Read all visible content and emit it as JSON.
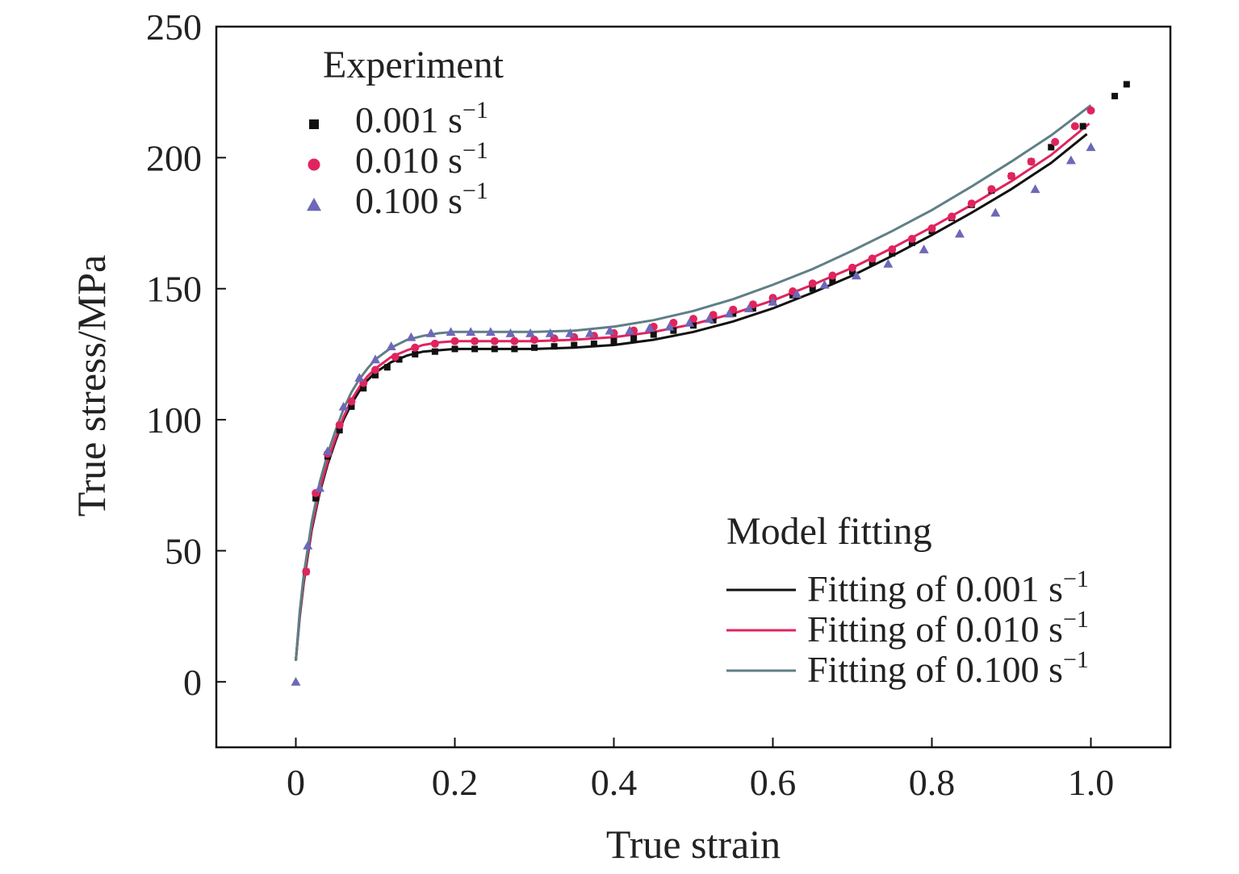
{
  "chart_data": {
    "type": "scatter",
    "title": "",
    "xlabel": "True strain",
    "ylabel": "True stress/MPa",
    "xlim": [
      -0.1,
      1.1
    ],
    "ylim": [
      -25,
      250
    ],
    "x_ticks": [
      {
        "value": 0,
        "label": "0"
      },
      {
        "value": 0.2,
        "label": "0.2"
      },
      {
        "value": 0.4,
        "label": "0.4"
      },
      {
        "value": 0.6,
        "label": "0.6"
      },
      {
        "value": 0.8,
        "label": "0.8"
      },
      {
        "value": 1.0,
        "label": "1.0"
      }
    ],
    "y_ticks": [
      {
        "value": 0,
        "label": "0"
      },
      {
        "value": 50,
        "label": "50"
      },
      {
        "value": 100,
        "label": "100"
      },
      {
        "value": 150,
        "label": "150"
      },
      {
        "value": 200,
        "label": "200"
      },
      {
        "value": 250,
        "label": "250"
      }
    ],
    "grid": false,
    "legend_experiment": {
      "title": "Experiment",
      "placement": "top-left",
      "entries": [
        {
          "label": "0.001 s",
          "sup": "−1",
          "marker": "square",
          "color": "#111111"
        },
        {
          "label": "0.010 s",
          "sup": "−1",
          "marker": "circle",
          "color": "#e0245e"
        },
        {
          "label": "0.100 s",
          "sup": "−1",
          "marker": "triangle",
          "color": "#6d68b8"
        }
      ]
    },
    "legend_model": {
      "title": "Model fitting",
      "placement": "bottom-right",
      "entries": [
        {
          "label": "Fitting of 0.001 s",
          "sup": "−1",
          "color": "#111111"
        },
        {
          "label": "Fitting of 0.010 s",
          "sup": "−1",
          "color": "#e0245e"
        },
        {
          "label": "Fitting of 0.100 s",
          "sup": "−1",
          "color": "#5f7f86"
        }
      ]
    },
    "series": [
      {
        "name": "0.001 s-1 experiment",
        "kind": "scatter",
        "marker": "square",
        "color": "#111111",
        "points": [
          [
            0.013,
            42
          ],
          [
            0.025,
            70
          ],
          [
            0.04,
            86
          ],
          [
            0.055,
            96
          ],
          [
            0.07,
            105
          ],
          [
            0.085,
            112
          ],
          [
            0.1,
            117
          ],
          [
            0.115,
            120
          ],
          [
            0.13,
            123
          ],
          [
            0.15,
            125
          ],
          [
            0.175,
            126
          ],
          [
            0.2,
            127
          ],
          [
            0.225,
            127
          ],
          [
            0.25,
            127
          ],
          [
            0.275,
            127
          ],
          [
            0.3,
            127.5
          ],
          [
            0.325,
            128
          ],
          [
            0.35,
            128.5
          ],
          [
            0.375,
            129
          ],
          [
            0.4,
            130
          ],
          [
            0.425,
            131
          ],
          [
            0.45,
            132.5
          ],
          [
            0.475,
            134
          ],
          [
            0.5,
            136
          ],
          [
            0.525,
            138
          ],
          [
            0.55,
            140.5
          ],
          [
            0.575,
            142.5
          ],
          [
            0.6,
            145
          ],
          [
            0.625,
            147.5
          ],
          [
            0.65,
            150
          ],
          [
            0.675,
            153
          ],
          [
            0.7,
            156.5
          ],
          [
            0.725,
            160
          ],
          [
            0.75,
            163.5
          ],
          [
            0.775,
            167.5
          ],
          [
            0.8,
            172
          ],
          [
            0.825,
            177
          ],
          [
            0.85,
            182
          ],
          [
            0.875,
            187.5
          ],
          [
            0.9,
            193
          ],
          [
            0.925,
            198.5
          ],
          [
            0.95,
            204
          ],
          [
            0.99,
            212
          ],
          [
            1.03,
            223.5
          ],
          [
            1.045,
            228
          ]
        ]
      },
      {
        "name": "0.010 s-1 experiment",
        "kind": "scatter",
        "marker": "circle",
        "color": "#e0245e",
        "points": [
          [
            0.013,
            42
          ],
          [
            0.025,
            72
          ],
          [
            0.04,
            87
          ],
          [
            0.055,
            98
          ],
          [
            0.07,
            107
          ],
          [
            0.085,
            114
          ],
          [
            0.1,
            119
          ],
          [
            0.125,
            124
          ],
          [
            0.15,
            127.5
          ],
          [
            0.175,
            129
          ],
          [
            0.2,
            130
          ],
          [
            0.225,
            130
          ],
          [
            0.25,
            130
          ],
          [
            0.275,
            130
          ],
          [
            0.3,
            130.5
          ],
          [
            0.325,
            131
          ],
          [
            0.35,
            131.5
          ],
          [
            0.375,
            132
          ],
          [
            0.4,
            133
          ],
          [
            0.425,
            134
          ],
          [
            0.45,
            135.5
          ],
          [
            0.475,
            137
          ],
          [
            0.5,
            138.5
          ],
          [
            0.525,
            140
          ],
          [
            0.55,
            142
          ],
          [
            0.575,
            144
          ],
          [
            0.6,
            146.5
          ],
          [
            0.625,
            149
          ],
          [
            0.65,
            152
          ],
          [
            0.675,
            155
          ],
          [
            0.7,
            158
          ],
          [
            0.725,
            161.5
          ],
          [
            0.75,
            165
          ],
          [
            0.775,
            169
          ],
          [
            0.8,
            173
          ],
          [
            0.825,
            177.5
          ],
          [
            0.85,
            182.5
          ],
          [
            0.875,
            188
          ],
          [
            0.9,
            193
          ],
          [
            0.925,
            198.5
          ],
          [
            0.955,
            206
          ],
          [
            0.98,
            212
          ],
          [
            1.0,
            218
          ]
        ]
      },
      {
        "name": "0.100 s-1 experiment",
        "kind": "scatter",
        "marker": "triangle",
        "color": "#6d68b8",
        "points": [
          [
            0.0,
            0
          ],
          [
            0.015,
            52
          ],
          [
            0.03,
            74
          ],
          [
            0.04,
            88
          ],
          [
            0.06,
            105
          ],
          [
            0.08,
            116
          ],
          [
            0.1,
            123
          ],
          [
            0.12,
            128
          ],
          [
            0.145,
            131.5
          ],
          [
            0.17,
            133
          ],
          [
            0.195,
            133.5
          ],
          [
            0.22,
            133.5
          ],
          [
            0.245,
            133.5
          ],
          [
            0.27,
            133
          ],
          [
            0.295,
            133
          ],
          [
            0.32,
            133
          ],
          [
            0.345,
            133
          ],
          [
            0.37,
            133
          ],
          [
            0.395,
            134
          ],
          [
            0.42,
            134
          ],
          [
            0.445,
            135
          ],
          [
            0.47,
            135.5
          ],
          [
            0.495,
            137
          ],
          [
            0.52,
            138.5
          ],
          [
            0.545,
            140.5
          ],
          [
            0.57,
            142.5
          ],
          [
            0.6,
            145
          ],
          [
            0.63,
            148
          ],
          [
            0.665,
            151.5
          ],
          [
            0.705,
            155
          ],
          [
            0.745,
            159.5
          ],
          [
            0.79,
            165
          ],
          [
            0.835,
            171
          ],
          [
            0.88,
            179
          ],
          [
            0.93,
            188
          ],
          [
            0.975,
            199
          ],
          [
            1.0,
            204
          ]
        ]
      },
      {
        "name": "Fitting of 0.001 s-1",
        "kind": "line",
        "color": "#111111",
        "points": [
          [
            0.0,
            8
          ],
          [
            0.005,
            25
          ],
          [
            0.01,
            38
          ],
          [
            0.02,
            58
          ],
          [
            0.03,
            72
          ],
          [
            0.04,
            83
          ],
          [
            0.05,
            92
          ],
          [
            0.06,
            100
          ],
          [
            0.07,
            106
          ],
          [
            0.08,
            111
          ],
          [
            0.09,
            115
          ],
          [
            0.1,
            118
          ],
          [
            0.12,
            122
          ],
          [
            0.14,
            124.5
          ],
          [
            0.16,
            126
          ],
          [
            0.18,
            126.5
          ],
          [
            0.2,
            127
          ],
          [
            0.25,
            127
          ],
          [
            0.3,
            127
          ],
          [
            0.35,
            127.5
          ],
          [
            0.4,
            128.5
          ],
          [
            0.45,
            130.5
          ],
          [
            0.5,
            133.5
          ],
          [
            0.55,
            137.5
          ],
          [
            0.6,
            142.5
          ],
          [
            0.65,
            148.5
          ],
          [
            0.7,
            155
          ],
          [
            0.75,
            162.5
          ],
          [
            0.8,
            170.5
          ],
          [
            0.85,
            179
          ],
          [
            0.9,
            188
          ],
          [
            0.95,
            198
          ],
          [
            0.995,
            209
          ]
        ]
      },
      {
        "name": "Fitting of 0.010 s-1",
        "kind": "line",
        "color": "#e0245e",
        "points": [
          [
            0.0,
            8
          ],
          [
            0.005,
            26
          ],
          [
            0.01,
            39
          ],
          [
            0.02,
            59
          ],
          [
            0.03,
            73
          ],
          [
            0.04,
            84
          ],
          [
            0.05,
            93
          ],
          [
            0.06,
            101
          ],
          [
            0.07,
            107.5
          ],
          [
            0.08,
            112.5
          ],
          [
            0.09,
            116.5
          ],
          [
            0.1,
            119.5
          ],
          [
            0.12,
            124
          ],
          [
            0.14,
            126.5
          ],
          [
            0.16,
            128.5
          ],
          [
            0.18,
            129.5
          ],
          [
            0.2,
            130
          ],
          [
            0.25,
            130
          ],
          [
            0.3,
            130
          ],
          [
            0.35,
            130.5
          ],
          [
            0.4,
            131.5
          ],
          [
            0.45,
            133.5
          ],
          [
            0.5,
            136.5
          ],
          [
            0.55,
            140.5
          ],
          [
            0.6,
            145.5
          ],
          [
            0.65,
            151.5
          ],
          [
            0.7,
            158
          ],
          [
            0.75,
            165.5
          ],
          [
            0.8,
            173.5
          ],
          [
            0.85,
            182
          ],
          [
            0.9,
            191
          ],
          [
            0.95,
            201
          ],
          [
            0.998,
            213
          ]
        ]
      },
      {
        "name": "Fitting of 0.100 s-1",
        "kind": "line",
        "color": "#5f7f86",
        "points": [
          [
            0.0,
            8
          ],
          [
            0.005,
            27
          ],
          [
            0.01,
            41
          ],
          [
            0.02,
            61
          ],
          [
            0.03,
            76
          ],
          [
            0.04,
            87
          ],
          [
            0.05,
            96
          ],
          [
            0.06,
            104
          ],
          [
            0.07,
            110.5
          ],
          [
            0.08,
            115.5
          ],
          [
            0.09,
            119.5
          ],
          [
            0.1,
            123
          ],
          [
            0.12,
            127.5
          ],
          [
            0.14,
            130.5
          ],
          [
            0.16,
            132
          ],
          [
            0.18,
            133
          ],
          [
            0.2,
            133.5
          ],
          [
            0.25,
            133.5
          ],
          [
            0.3,
            133.5
          ],
          [
            0.35,
            134
          ],
          [
            0.4,
            135.5
          ],
          [
            0.45,
            138
          ],
          [
            0.5,
            141.5
          ],
          [
            0.55,
            146
          ],
          [
            0.6,
            151.5
          ],
          [
            0.65,
            157.5
          ],
          [
            0.7,
            164.5
          ],
          [
            0.75,
            172
          ],
          [
            0.8,
            180
          ],
          [
            0.85,
            189
          ],
          [
            0.9,
            198.5
          ],
          [
            0.95,
            208.5
          ],
          [
            1.0,
            220
          ]
        ]
      }
    ]
  }
}
